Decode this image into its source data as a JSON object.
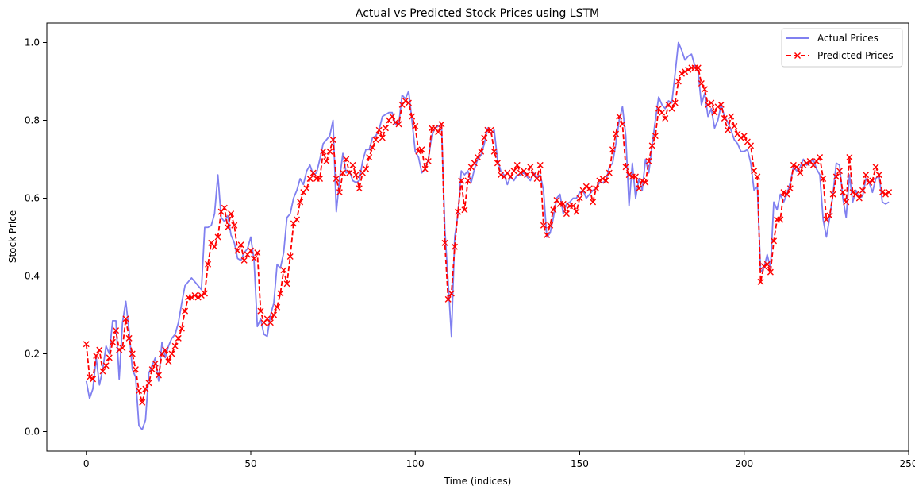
{
  "chart_data": {
    "type": "line",
    "title": "Actual vs Predicted Stock Prices using LSTM",
    "xlabel": "Time (indices)",
    "ylabel": "Stock Price",
    "xlim": [
      -12,
      250
    ],
    "ylim": [
      -0.05,
      1.05
    ],
    "xticks": [
      0,
      50,
      100,
      150,
      200,
      250
    ],
    "yticks": [
      0.0,
      0.2,
      0.4,
      0.6,
      0.8,
      1.0
    ],
    "grid": false,
    "legend": "top-right",
    "colors": {
      "actual": "#8080f0",
      "predicted": "#ff0000"
    },
    "series": [
      {
        "name": "Actual Prices",
        "style": "solid",
        "values": [
          0.13,
          0.085,
          0.11,
          0.19,
          0.12,
          0.16,
          0.22,
          0.2,
          0.285,
          0.285,
          0.135,
          0.28,
          0.335,
          0.26,
          0.16,
          0.14,
          0.015,
          0.005,
          0.03,
          0.15,
          0.17,
          0.19,
          0.13,
          0.23,
          0.19,
          0.22,
          0.24,
          0.25,
          0.28,
          0.33,
          0.375,
          0.385,
          0.395,
          0.385,
          0.375,
          0.365,
          0.525,
          0.525,
          0.53,
          0.56,
          0.66,
          0.55,
          0.54,
          0.555,
          0.505,
          0.485,
          0.445,
          0.44,
          0.46,
          0.47,
          0.5,
          0.44,
          0.27,
          0.29,
          0.25,
          0.245,
          0.3,
          0.33,
          0.43,
          0.42,
          0.46,
          0.55,
          0.56,
          0.6,
          0.62,
          0.65,
          0.635,
          0.67,
          0.685,
          0.66,
          0.665,
          0.7,
          0.74,
          0.75,
          0.76,
          0.8,
          0.565,
          0.65,
          0.715,
          0.665,
          0.67,
          0.645,
          0.64,
          0.645,
          0.695,
          0.725,
          0.725,
          0.755,
          0.76,
          0.775,
          0.81,
          0.815,
          0.82,
          0.82,
          0.79,
          0.79,
          0.865,
          0.855,
          0.875,
          0.8,
          0.72,
          0.705,
          0.665,
          0.675,
          0.7,
          0.76,
          0.78,
          0.785,
          0.79,
          0.52,
          0.385,
          0.245,
          0.5,
          0.56,
          0.67,
          0.66,
          0.67,
          0.64,
          0.675,
          0.7,
          0.71,
          0.74,
          0.78,
          0.765,
          0.775,
          0.7,
          0.67,
          0.66,
          0.635,
          0.655,
          0.645,
          0.66,
          0.66,
          0.665,
          0.655,
          0.645,
          0.665,
          0.655,
          0.66,
          0.62,
          0.5,
          0.51,
          0.55,
          0.6,
          0.61,
          0.56,
          0.585,
          0.59,
          0.6,
          0.6,
          0.615,
          0.62,
          0.6,
          0.61,
          0.62,
          0.625,
          0.64,
          0.64,
          0.645,
          0.68,
          0.69,
          0.74,
          0.8,
          0.835,
          0.76,
          0.58,
          0.69,
          0.6,
          0.65,
          0.62,
          0.7,
          0.665,
          0.735,
          0.8,
          0.86,
          0.84,
          0.83,
          0.85,
          0.845,
          0.92,
          1.0,
          0.98,
          0.955,
          0.965,
          0.97,
          0.94,
          0.925,
          0.84,
          0.87,
          0.81,
          0.83,
          0.78,
          0.8,
          0.84,
          0.81,
          0.795,
          0.775,
          0.75,
          0.74,
          0.72,
          0.72,
          0.725,
          0.69,
          0.62,
          0.63,
          0.41,
          0.42,
          0.455,
          0.42,
          0.59,
          0.57,
          0.61,
          0.59,
          0.61,
          0.64,
          0.68,
          0.67,
          0.68,
          0.7,
          0.685,
          0.69,
          0.7,
          0.675,
          0.66,
          0.545,
          0.5,
          0.55,
          0.61,
          0.69,
          0.685,
          0.6,
          0.55,
          0.66,
          0.59,
          0.62,
          0.6,
          0.605,
          0.65,
          0.64,
          0.615,
          0.65,
          0.66,
          0.59,
          0.585,
          0.59
        ]
      },
      {
        "name": "Predicted Prices",
        "style": "dashed",
        "marker": "x",
        "values": [
          0.225,
          0.14,
          0.135,
          0.195,
          0.21,
          0.155,
          0.17,
          0.19,
          0.23,
          0.26,
          0.21,
          0.215,
          0.29,
          0.24,
          0.2,
          0.16,
          0.105,
          0.075,
          0.11,
          0.125,
          0.16,
          0.175,
          0.145,
          0.2,
          0.21,
          0.18,
          0.2,
          0.22,
          0.24,
          0.265,
          0.31,
          0.345,
          0.345,
          0.35,
          0.345,
          0.35,
          0.355,
          0.43,
          0.485,
          0.475,
          0.5,
          0.565,
          0.575,
          0.525,
          0.56,
          0.53,
          0.465,
          0.48,
          0.44,
          0.455,
          0.465,
          0.445,
          0.46,
          0.31,
          0.28,
          0.29,
          0.28,
          0.3,
          0.32,
          0.355,
          0.415,
          0.38,
          0.45,
          0.535,
          0.545,
          0.59,
          0.615,
          0.625,
          0.65,
          0.665,
          0.65,
          0.65,
          0.72,
          0.695,
          0.72,
          0.75,
          0.65,
          0.615,
          0.665,
          0.7,
          0.665,
          0.685,
          0.66,
          0.625,
          0.665,
          0.675,
          0.705,
          0.73,
          0.75,
          0.775,
          0.755,
          0.78,
          0.8,
          0.81,
          0.795,
          0.79,
          0.84,
          0.85,
          0.845,
          0.81,
          0.785,
          0.72,
          0.725,
          0.675,
          0.695,
          0.78,
          0.78,
          0.77,
          0.79,
          0.485,
          0.34,
          0.355,
          0.475,
          0.565,
          0.645,
          0.57,
          0.645,
          0.68,
          0.69,
          0.705,
          0.72,
          0.755,
          0.775,
          0.775,
          0.72,
          0.69,
          0.66,
          0.655,
          0.665,
          0.655,
          0.67,
          0.685,
          0.665,
          0.67,
          0.66,
          0.68,
          0.66,
          0.65,
          0.685,
          0.53,
          0.505,
          0.53,
          0.57,
          0.595,
          0.585,
          0.585,
          0.56,
          0.58,
          0.58,
          0.565,
          0.6,
          0.62,
          0.63,
          0.625,
          0.59,
          0.625,
          0.645,
          0.65,
          0.645,
          0.665,
          0.725,
          0.765,
          0.81,
          0.79,
          0.68,
          0.66,
          0.655,
          0.655,
          0.625,
          0.645,
          0.64,
          0.695,
          0.735,
          0.76,
          0.83,
          0.82,
          0.805,
          0.84,
          0.83,
          0.845,
          0.9,
          0.92,
          0.925,
          0.93,
          0.935,
          0.935,
          0.935,
          0.895,
          0.88,
          0.84,
          0.845,
          0.82,
          0.835,
          0.84,
          0.805,
          0.775,
          0.81,
          0.785,
          0.765,
          0.755,
          0.76,
          0.745,
          0.735,
          0.67,
          0.655,
          0.385,
          0.425,
          0.43,
          0.41,
          0.49,
          0.545,
          0.545,
          0.615,
          0.61,
          0.625,
          0.685,
          0.68,
          0.665,
          0.685,
          0.69,
          0.695,
          0.685,
          0.695,
          0.705,
          0.65,
          0.545,
          0.555,
          0.61,
          0.655,
          0.67,
          0.615,
          0.59,
          0.705,
          0.615,
          0.61,
          0.6,
          0.62,
          0.66,
          0.64,
          0.645,
          0.68,
          0.66,
          0.615,
          0.61,
          0.615
        ]
      }
    ]
  }
}
